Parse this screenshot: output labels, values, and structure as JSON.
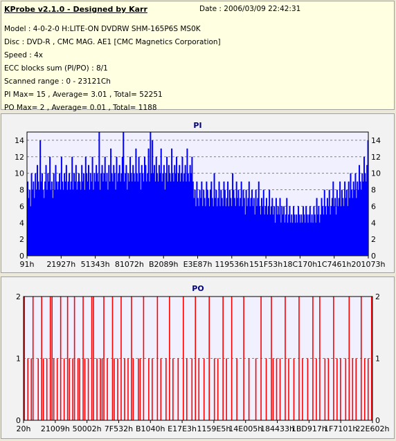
{
  "header": {
    "title": "KProbe v2.1.0 - Designed by Karr",
    "date": "Date : 2006/03/09 22:42:31",
    "lines": [
      "Model : 4-0-2-0 H:LITE-ON DVDRW SHM-165P6S MS0K",
      "Disc : DVD-R , CMC MAG. AE1 [CMC Magnetics Corporation]",
      "Speed : 4x",
      "ECC blocks sum (PI/PO) : 8/1",
      "Scanned range : 0 - 23121Ch",
      "PI Max= 15 , Average= 3.01 , Total= 52251",
      "PO Max= 2 , Average= 0.01 , Total= 1188"
    ]
  },
  "colors": {
    "pi": "#0000ff",
    "po": "#ff0000",
    "plot_bg": "#f0f0ff",
    "grid": "#808080",
    "title": "#000080"
  },
  "chart_data": [
    {
      "type": "bar",
      "title": "PI",
      "ylim": [
        0,
        15
      ],
      "yticks": [
        0,
        2,
        4,
        6,
        8,
        10,
        12,
        14
      ],
      "xtick_labels": [
        "91h",
        "21927h",
        "51343h",
        "81072h",
        "B2089h",
        "E3E87h",
        "119536h",
        "151F53h",
        "18C170h",
        "1C7461h",
        "201073h"
      ],
      "grid": "horizontal dashed",
      "series": [
        {
          "values": [
            9,
            7,
            8,
            6,
            10,
            8,
            9,
            7,
            10,
            8,
            11,
            9,
            8,
            14,
            9,
            10,
            8,
            7,
            9,
            11,
            8,
            10,
            9,
            12,
            8,
            9,
            7,
            10,
            8,
            11,
            9,
            8,
            9,
            10,
            8,
            12,
            9,
            8,
            10,
            9,
            11,
            8,
            9,
            10,
            8,
            9,
            12,
            8,
            10,
            9,
            11,
            8,
            9,
            10,
            9,
            8,
            11,
            9,
            10,
            8,
            12,
            10,
            9,
            11,
            8,
            10,
            9,
            12,
            8,
            10,
            9,
            11,
            10,
            9,
            15,
            8,
            10,
            11,
            9,
            10,
            12,
            9,
            10,
            8,
            11,
            9,
            13,
            10,
            9,
            11,
            10,
            8,
            12,
            9,
            10,
            11,
            9,
            10,
            12,
            15,
            9,
            10,
            11,
            8,
            10,
            9,
            12,
            10,
            9,
            11,
            10,
            9,
            13,
            10,
            9,
            12,
            10,
            8,
            11,
            10,
            9,
            12,
            11,
            9,
            10,
            13,
            9,
            15,
            10,
            14,
            10,
            11,
            9,
            12,
            10,
            9,
            11,
            10,
            13,
            9,
            10,
            11,
            8,
            10,
            12,
            9,
            11,
            10,
            9,
            13,
            10,
            9,
            11,
            10,
            12,
            9,
            10,
            11,
            9,
            10,
            12,
            9,
            10,
            11,
            9,
            13,
            10,
            9,
            11,
            10,
            12,
            9,
            7,
            8,
            6,
            9,
            7,
            6,
            8,
            7,
            9,
            6,
            8,
            7,
            6,
            9,
            8,
            7,
            6,
            8,
            9,
            7,
            6,
            10,
            7,
            8,
            6,
            7,
            9,
            6,
            8,
            7,
            6,
            9,
            8,
            6,
            7,
            9,
            6,
            8,
            7,
            6,
            10,
            8,
            7,
            6,
            9,
            7,
            8,
            6,
            7,
            9,
            6,
            8,
            7,
            5,
            8,
            6,
            7,
            9,
            6,
            7,
            8,
            6,
            7,
            5,
            8,
            6,
            7,
            9,
            6,
            5,
            7,
            6,
            8,
            5,
            6,
            7,
            5,
            6,
            8,
            5,
            6,
            7,
            5,
            6,
            4,
            7,
            5,
            6,
            5,
            7,
            4,
            6,
            5,
            6,
            4,
            5,
            7,
            4,
            5,
            6,
            4,
            5,
            4,
            6,
            5,
            4,
            5,
            4,
            6,
            5,
            4,
            5,
            4,
            6,
            5,
            4,
            6,
            5,
            4,
            5,
            6,
            4,
            5,
            4,
            6,
            5,
            4,
            7,
            5,
            6,
            4,
            5,
            7,
            6,
            5,
            8,
            6,
            5,
            7,
            6,
            8,
            5,
            6,
            7,
            9,
            6,
            7,
            5,
            8,
            6,
            7,
            9,
            6,
            8,
            7,
            6,
            9,
            7,
            8,
            6,
            9,
            7,
            10,
            8,
            7,
            9,
            8,
            10,
            7,
            9,
            8,
            11,
            9,
            8,
            10,
            9,
            12,
            10,
            9,
            11,
            14
          ]
        }
      ]
    },
    {
      "type": "bar",
      "title": "PO",
      "ylim": [
        0,
        2
      ],
      "yticks": [
        0,
        1,
        2
      ],
      "xtick_labels": [
        "20h",
        "21009h",
        "50002h",
        "7F532h",
        "B1040h",
        "E17E3h",
        "1159E5h",
        "14E005h",
        "184433h",
        "1BD917h",
        "1F7101h",
        "22E602h"
      ],
      "grid": "horizontal dashed",
      "series": [
        {
          "values": [
            2,
            0,
            1,
            0,
            1,
            2,
            0,
            0,
            1,
            0,
            2,
            1,
            0,
            1,
            0,
            2,
            2,
            1,
            0,
            1,
            0,
            2,
            0,
            1,
            0,
            2,
            1,
            0,
            1,
            2,
            0,
            1,
            1,
            0,
            2,
            1,
            0,
            1,
            0,
            2,
            2,
            0,
            1,
            0,
            1,
            1,
            2,
            0,
            1,
            0,
            0,
            2,
            1,
            0,
            1,
            0,
            2,
            0,
            1,
            0,
            1,
            0,
            2,
            1,
            0,
            0,
            1,
            1,
            0,
            2,
            0,
            0,
            1,
            0,
            1,
            0,
            0,
            2,
            0,
            1,
            0,
            0,
            1,
            0,
            2,
            0,
            1,
            0,
            0,
            1,
            0,
            0,
            2,
            0,
            1,
            0,
            0,
            1,
            0,
            2,
            0,
            1,
            0,
            0,
            1,
            0,
            0,
            2,
            0,
            0,
            1,
            0,
            1,
            0,
            0,
            2,
            0,
            1,
            0,
            0,
            2,
            0,
            0,
            1,
            0,
            0,
            0,
            2,
            0,
            0,
            1,
            0,
            0,
            0,
            1,
            0,
            0,
            2,
            0,
            0,
            1,
            0,
            0,
            2,
            1,
            0,
            1,
            0,
            1,
            0,
            0,
            2,
            0,
            1,
            0,
            0,
            1,
            0,
            0,
            2,
            0,
            1,
            0,
            0,
            1,
            0,
            0,
            2,
            0,
            1,
            0,
            2,
            0,
            0,
            1,
            0,
            1,
            0,
            0,
            2,
            0,
            1,
            0,
            1,
            0,
            0,
            1,
            0,
            2,
            0,
            1,
            0,
            1,
            0,
            0,
            2,
            0,
            1,
            0,
            1,
            0,
            2
          ]
        }
      ]
    }
  ]
}
